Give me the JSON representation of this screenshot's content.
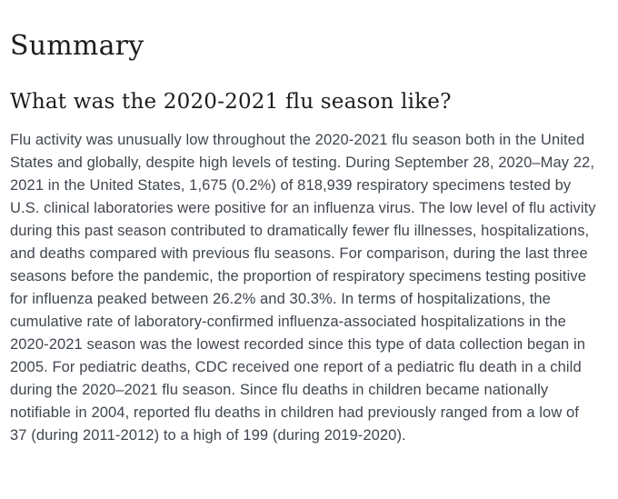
{
  "page": {
    "colors": {
      "background": "#ffffff",
      "heading": "#1c1d20",
      "body_text": "#40464f"
    }
  },
  "content": {
    "title": "Summary",
    "subtitle": "What was the 2020-2021 flu season like?",
    "paragraph": "Flu activity was unusually low throughout the 2020-2021 flu season both in the United States and globally, despite high levels of testing. During September 28, 2020–May 22, 2021 in the United States, 1,675 (0.2%) of 818,939 respiratory specimens tested by U.S. clinical laboratories were positive for an influenza virus. The low level of flu activity during this past season contributed to dramatically fewer flu illnesses, hospitalizations, and deaths compared with previous flu seasons. For comparison, during the last three seasons before the pandemic, the proportion of respiratory specimens testing positive for influenza peaked between 26.2% and 30.3%. In terms of hospitalizations, the cumulative rate of laboratory-confirmed influenza-associated hospitalizations in the 2020-2021 season was the lowest recorded since this type of data collection began in 2005. For pediatric deaths, CDC received one report of a pediatric flu death in a child during the 2020–2021 flu season. Since flu deaths in children became nationally notifiable in 2004, reported flu deaths in children had previously ranged from a low of 37 (during 2011-2012) to a high of 199 (during 2019-2020)."
  }
}
